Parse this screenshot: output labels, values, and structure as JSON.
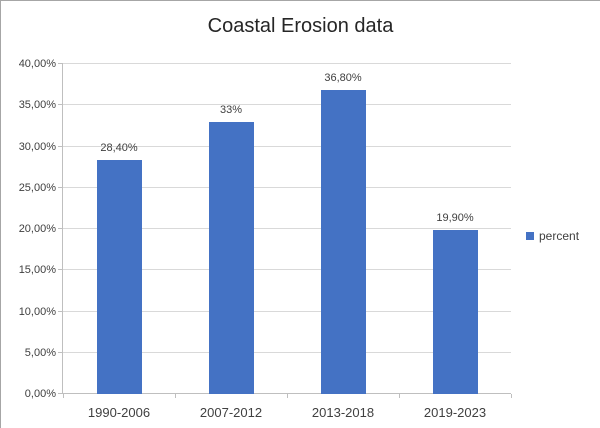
{
  "title": "Coastal Erosion data",
  "legend": {
    "label": "percent"
  },
  "chart_data": {
    "type": "bar",
    "title": "Coastal Erosion data",
    "categories": [
      "1990-2006",
      "2007-2012",
      "2013-2018",
      "2019-2023"
    ],
    "series": [
      {
        "name": "percent",
        "values": [
          28.4,
          33,
          36.8,
          19.9
        ]
      }
    ],
    "value_labels": [
      "28,40%",
      "33%",
      "36,80%",
      "19,90%"
    ],
    "ylim": [
      0,
      40
    ],
    "ytick_labels": [
      "0,00%",
      "5,00%",
      "10,00%",
      "15,00%",
      "20,00%",
      "25,00%",
      "30,00%",
      "35,00%",
      "40,00%"
    ],
    "grid": true,
    "legend_position": "right",
    "bar_color": "#4472C4",
    "xlabel": "",
    "ylabel": ""
  },
  "colors": {
    "bar": "#4472C4",
    "gridline": "#D9D9D9",
    "axis_line": "#BFBFBF",
    "label_text": "#404040",
    "frame_border": "#A6A6A6"
  }
}
